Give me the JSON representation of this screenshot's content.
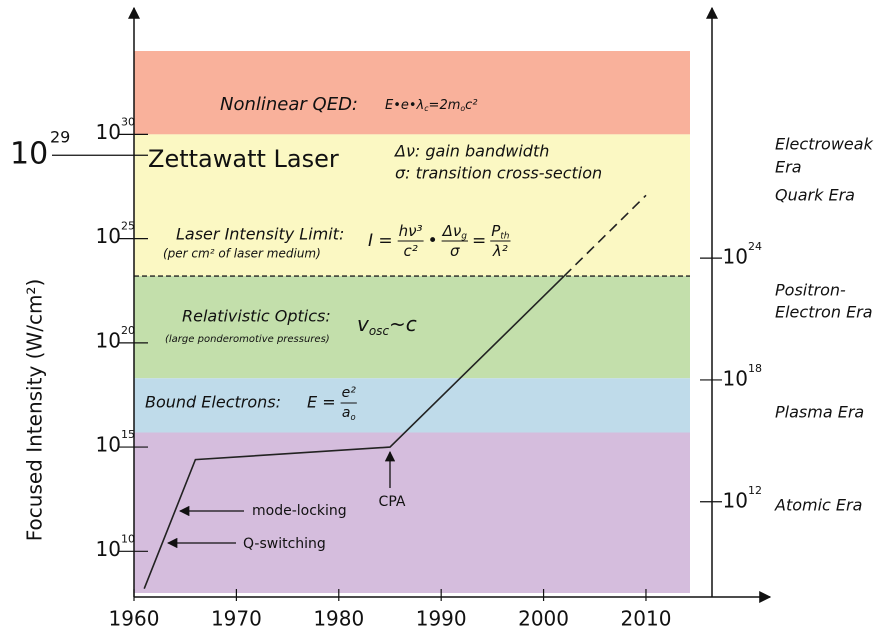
{
  "chart_data": {
    "type": "line",
    "y_label": "Focused Intensity (W/cm²)",
    "log_y": true,
    "xlim": [
      1960,
      2014.3
    ],
    "xticks": [
      1960,
      1970,
      1980,
      1990,
      2000,
      2010
    ],
    "ylim": [
      100000000.0,
      1e+34
    ],
    "yticks": [
      {
        "value": 10000000000.0,
        "label": "10",
        "exponent": "10"
      },
      {
        "value": 1000000000000000.0,
        "label": "10",
        "exponent": "15"
      },
      {
        "value": 1e+20,
        "label": "10",
        "exponent": "20"
      },
      {
        "value": 1e+25,
        "label": "10",
        "exponent": "25"
      },
      {
        "value": 1e+30,
        "label": "10",
        "exponent": "30"
      }
    ],
    "y2lim": [
      32000000.0,
      1.6e+34
    ],
    "y2ticks": [
      {
        "value": 1000000000000.0,
        "label": "10",
        "exponent": "12"
      },
      {
        "value": 1e+18,
        "label": "10",
        "exponent": "18"
      },
      {
        "value": 1e+24,
        "label": "10",
        "exponent": "24"
      }
    ],
    "series": [
      {
        "color": "#222222",
        "dashed": false,
        "x": [
          1961,
          1966,
          1985,
          2002
        ],
        "values": [
          160000000.0,
          250000000000000.0,
          1000000000000000.0,
          1.6e+23
        ]
      },
      {
        "color": "#222222",
        "dashed": true,
        "x": [
          2002,
          2010
        ],
        "values": [
          1.6e+23,
          1.2e+27
        ]
      }
    ],
    "bands": [
      {
        "from": 1e+30,
        "to": 1e+34,
        "color": "#f9b19b",
        "border": "none"
      },
      {
        "from": 1.6e+23,
        "to": 1e+30,
        "color": "#fbf8c3",
        "border": "dashed"
      },
      {
        "from": 2e+18,
        "to": 1.6e+23,
        "color": "#c3dfab",
        "border": "none"
      },
      {
        "from": 5000000000000000.0,
        "to": 2e+18,
        "color": "#bfdbea",
        "border": "none"
      },
      {
        "from": 100000000.0,
        "to": 5000000000000000.0,
        "color": "#d5bddd",
        "border": "none"
      }
    ],
    "zettawatt": {
      "value": 1e+29,
      "label": "10",
      "exponent": "29",
      "text": "Zettawatt Laser"
    },
    "qed": {
      "title": "Nonlinear QED:",
      "formula": [
        {
          "text": "E•e•λ"
        },
        {
          "sub": "c"
        },
        {
          "text": "=2m"
        },
        {
          "sub": "o"
        },
        {
          "text": "c²"
        }
      ]
    },
    "legend_notes": [
      "Δν: gain bandwidth",
      "σ: transition cross-section"
    ],
    "laser_limit": {
      "title": "Laser Intensity Limit:",
      "note": "(per cm² of laser medium)",
      "formula": {
        "lhs": "I =",
        "ops": [
          "•",
          "="
        ],
        "terms": [
          {
            "num": [
              {
                "text": "hν³"
              }
            ],
            "den": [
              {
                "text": "c²"
              }
            ]
          },
          {
            "num": [
              {
                "text": "Δν"
              },
              {
                "sub": "g"
              }
            ],
            "den": [
              {
                "text": "σ"
              }
            ]
          },
          {
            "num": [
              {
                "text": "P"
              },
              {
                "sub": "th"
              }
            ],
            "den": [
              {
                "text": "λ²"
              }
            ]
          }
        ]
      }
    },
    "relativistic": {
      "title": "Relativistic Optics:",
      "note": "(large ponderomotive pressures)",
      "formula": [
        {
          "text": "v"
        },
        {
          "sub": "osc"
        },
        {
          "text": "~c"
        }
      ]
    },
    "bound": {
      "title": "Bound Electrons:",
      "formula": {
        "lhs": "E =",
        "ops": [],
        "terms": [
          {
            "num": [
              {
                "text": "e²"
              }
            ],
            "den": [
              {
                "text": "a"
              },
              {
                "sub": "o"
              }
            ]
          }
        ]
      }
    },
    "annotations": [
      "mode-locking",
      "Q-switching",
      "CPA"
    ],
    "eras": [
      [
        "Electroweak",
        "Era"
      ],
      [
        "Quark Era"
      ],
      [
        "Positron-",
        "Electron Era"
      ],
      [
        "Plasma Era"
      ],
      [
        "Atomic Era"
      ]
    ]
  }
}
